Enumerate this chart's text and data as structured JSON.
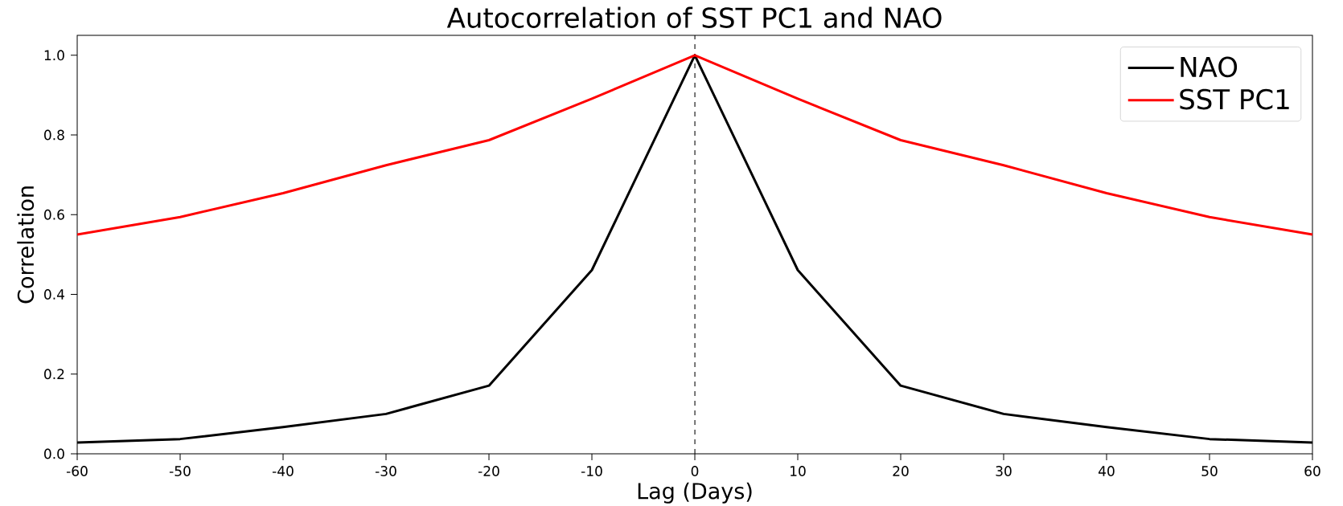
{
  "chart_data": {
    "type": "line",
    "title": "Autocorrelation of SST PC1 and NAO",
    "xlabel": "Lag (Days)",
    "ylabel": "Correlation",
    "x": [
      -60,
      -50,
      -40,
      -30,
      -20,
      -10,
      0,
      10,
      20,
      30,
      40,
      50,
      60
    ],
    "series": [
      {
        "name": "NAO",
        "color": "#000000",
        "values": [
          0.028,
          0.037,
          0.067,
          0.1,
          0.171,
          0.461,
          1.0,
          0.461,
          0.171,
          0.1,
          0.067,
          0.037,
          0.028
        ]
      },
      {
        "name": "SST PC1",
        "color": "#ff0000",
        "values": [
          0.55,
          0.594,
          0.654,
          0.724,
          0.787,
          0.891,
          1.0,
          0.891,
          0.787,
          0.724,
          0.654,
          0.594,
          0.55
        ]
      }
    ],
    "xlim": [
      -60,
      60
    ],
    "ylim": [
      0,
      1.05
    ],
    "xticks": [
      -60,
      -50,
      -40,
      -30,
      -20,
      -10,
      0,
      10,
      20,
      30,
      40,
      50,
      60
    ],
    "yticks": [
      {
        "value": 0,
        "label": "0.0"
      },
      0.2,
      0.4,
      0.6,
      0.8,
      {
        "value": 1,
        "label": "1.0"
      }
    ],
    "ref_lines": [
      {
        "axis": "x",
        "value": 0,
        "color": "#000000",
        "line_style": "dashed"
      }
    ],
    "legend": "top right"
  }
}
